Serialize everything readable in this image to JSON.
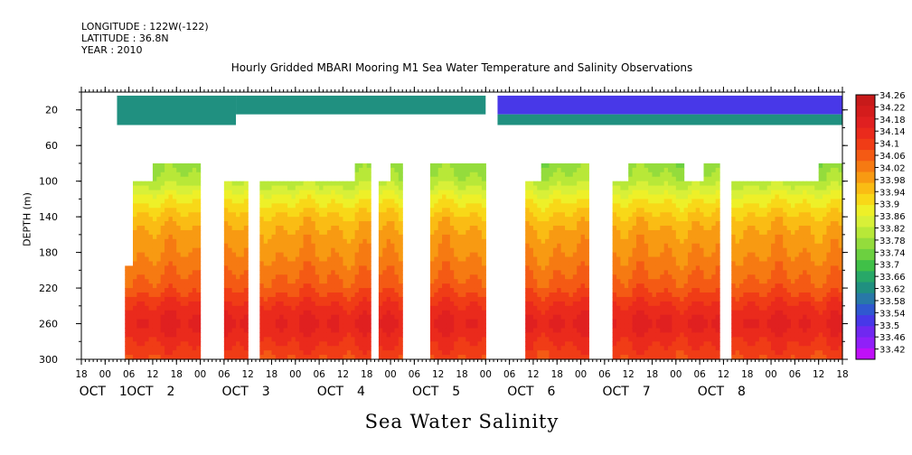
{
  "header": {
    "longitude": "LONGITUDE : 122W(-122)",
    "latitude": "LATITUDE : 36.8N",
    "year": "YEAR : 2010"
  },
  "chart_data": {
    "type": "heatmap",
    "title": "Hourly Gridded MBARI Mooring M1 Sea Water Temperature and Salinity Observations",
    "xlabel": "Sea Water Salinity",
    "ylabel": "DEPTH (m)",
    "ylim": [
      300,
      0
    ],
    "xlim_hours": [
      -6,
      186
    ],
    "y_ticks": [
      20,
      60,
      100,
      140,
      180,
      220,
      260,
      300
    ],
    "x_hour_ticks": [
      {
        "h": -6,
        "label": "18"
      },
      {
        "h": 0,
        "label": "00"
      },
      {
        "h": 6,
        "label": "06"
      },
      {
        "h": 12,
        "label": "12"
      },
      {
        "h": 18,
        "label": "18"
      },
      {
        "h": 24,
        "label": "00"
      },
      {
        "h": 30,
        "label": "06"
      },
      {
        "h": 36,
        "label": "12"
      },
      {
        "h": 42,
        "label": "18"
      },
      {
        "h": 48,
        "label": "00"
      },
      {
        "h": 54,
        "label": "06"
      },
      {
        "h": 60,
        "label": "12"
      },
      {
        "h": 66,
        "label": "18"
      },
      {
        "h": 72,
        "label": "00"
      },
      {
        "h": 78,
        "label": "06"
      },
      {
        "h": 84,
        "label": "12"
      },
      {
        "h": 90,
        "label": "18"
      },
      {
        "h": 96,
        "label": "00"
      },
      {
        "h": 102,
        "label": "06"
      },
      {
        "h": 108,
        "label": "12"
      },
      {
        "h": 114,
        "label": "18"
      },
      {
        "h": 120,
        "label": "00"
      },
      {
        "h": 126,
        "label": "06"
      },
      {
        "h": 132,
        "label": "12"
      },
      {
        "h": 138,
        "label": "18"
      },
      {
        "h": 144,
        "label": "00"
      },
      {
        "h": 150,
        "label": "06"
      },
      {
        "h": 156,
        "label": "12"
      },
      {
        "h": 162,
        "label": "18"
      },
      {
        "h": 168,
        "label": "00"
      },
      {
        "h": 174,
        "label": "06"
      },
      {
        "h": 180,
        "label": "12"
      },
      {
        "h": 186,
        "label": "18"
      }
    ],
    "day_labels": [
      {
        "h": 0,
        "month": "OCT",
        "day": "1"
      },
      {
        "h": 12,
        "month": "OCT",
        "day": "2"
      },
      {
        "h": 36,
        "month": "OCT",
        "day": "3"
      },
      {
        "h": 60,
        "month": "OCT",
        "day": "4"
      },
      {
        "h": 84,
        "month": "OCT",
        "day": "5"
      },
      {
        "h": 108,
        "month": "OCT",
        "day": "6"
      },
      {
        "h": 132,
        "month": "OCT",
        "day": "7"
      },
      {
        "h": 156,
        "month": "OCT",
        "day": "8"
      }
    ],
    "colorbar": {
      "ticks": [
        "34.26",
        "34.22",
        "34.18",
        "34.14",
        "34.1",
        "34.06",
        "34.02",
        "33.98",
        "33.94",
        "33.9",
        "33.86",
        "33.82",
        "33.78",
        "33.74",
        "33.7",
        "33.66",
        "33.62",
        "33.58",
        "33.54",
        "33.5",
        "33.46",
        "33.42"
      ],
      "colors": [
        "#c81a1a",
        "#d41c1c",
        "#e02020",
        "#ea2a1c",
        "#f03c16",
        "#f45a14",
        "#f67a12",
        "#f89a12",
        "#fabc14",
        "#f8d818",
        "#eef028",
        "#d8f038",
        "#b8e838",
        "#94dc3c",
        "#6cd040",
        "#40c048",
        "#28a868",
        "#209080",
        "#2878a8",
        "#3058d0",
        "#4838e8",
        "#7028f0",
        "#9020f8",
        "#c010f8"
      ],
      "range": [
        33.42,
        34.3
      ]
    },
    "surface_layer": [
      {
        "from": 3,
        "to": 33,
        "value": 33.66,
        "depth_to": 37
      },
      {
        "from": 33,
        "to": 96,
        "value": 33.66,
        "depth_to": 25
      },
      {
        "from": 99,
        "to": 186,
        "value": 33.56,
        "depth_to": 25
      },
      {
        "from": 99,
        "to": 186,
        "value": 33.64,
        "depth_from": 25,
        "depth_to": 37
      }
    ],
    "deep_segments": [
      {
        "from": 5,
        "to": 7,
        "top": 195,
        "bottom": 300
      },
      {
        "from": 7,
        "to": 12,
        "top": 100,
        "bottom": 300
      },
      {
        "from": 12,
        "to": 24,
        "top": 80,
        "bottom": 300
      },
      {
        "from": 30,
        "to": 36,
        "top": 100,
        "bottom": 300
      },
      {
        "from": 39,
        "to": 63,
        "top": 100,
        "bottom": 300
      },
      {
        "from": 63,
        "to": 67,
        "top": 80,
        "bottom": 300
      },
      {
        "from": 69,
        "to": 72,
        "top": 100,
        "bottom": 300
      },
      {
        "from": 72,
        "to": 75,
        "top": 80,
        "bottom": 300
      },
      {
        "from": 82,
        "to": 96,
        "top": 80,
        "bottom": 300
      },
      {
        "from": 106,
        "to": 110,
        "top": 100,
        "bottom": 300
      },
      {
        "from": 110,
        "to": 122,
        "top": 80,
        "bottom": 300
      },
      {
        "from": 128,
        "to": 132,
        "top": 100,
        "bottom": 300
      },
      {
        "from": 132,
        "to": 146,
        "top": 80,
        "bottom": 300
      },
      {
        "from": 146,
        "to": 151,
        "top": 100,
        "bottom": 300
      },
      {
        "from": 151,
        "to": 155,
        "top": 80,
        "bottom": 300
      },
      {
        "from": 158,
        "to": 180,
        "top": 100,
        "bottom": 300
      },
      {
        "from": 180,
        "to": 186,
        "top": 80,
        "bottom": 300
      }
    ],
    "salinity_profile": [
      {
        "depth": 80,
        "value": 33.8
      },
      {
        "depth": 100,
        "value": 33.84
      },
      {
        "depth": 120,
        "value": 33.92
      },
      {
        "depth": 140,
        "value": 33.98
      },
      {
        "depth": 160,
        "value": 34.02
      },
      {
        "depth": 180,
        "value": 34.04
      },
      {
        "depth": 200,
        "value": 34.07
      },
      {
        "depth": 220,
        "value": 34.1
      },
      {
        "depth": 240,
        "value": 34.16
      },
      {
        "depth": 260,
        "value": 34.2
      },
      {
        "depth": 280,
        "value": 34.16
      },
      {
        "depth": 300,
        "value": 34.12
      }
    ]
  }
}
